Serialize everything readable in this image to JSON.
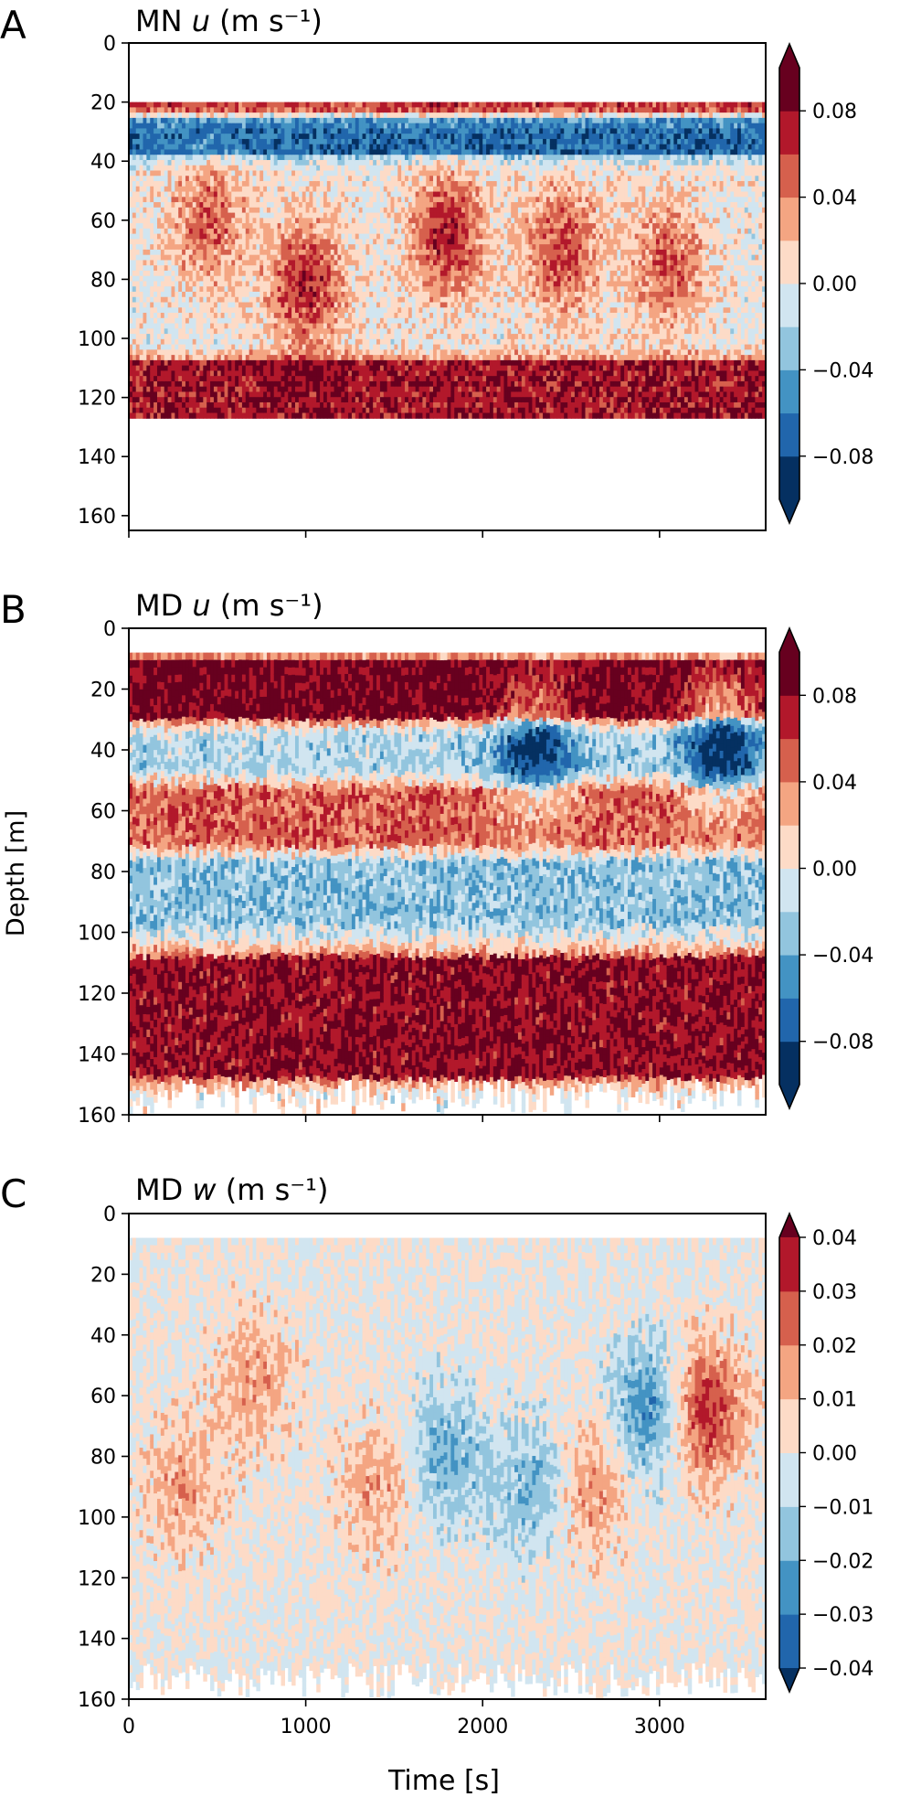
{
  "figure": {
    "xlabel": "Time [s]",
    "ylabel": "Depth [m]"
  },
  "colors": {
    "rdbu": [
      "#053061",
      "#2166ac",
      "#4393c3",
      "#92c5de",
      "#d1e5f0",
      "#f7f7f7",
      "#fddbc7",
      "#f4a582",
      "#d6604d",
      "#b2182b",
      "#67001f"
    ]
  },
  "chart_data": [
    {
      "type": "heatmap",
      "panel_letter": "A",
      "title_prefix": "MN",
      "title_var": "u",
      "title_unit": "(m s⁻¹)",
      "x_range": [
        0,
        3600
      ],
      "x_tick_values": [
        0,
        1000,
        2000,
        3000
      ],
      "x_tick_labels": [
        "",
        "",
        "",
        ""
      ],
      "y_range": [
        0,
        165
      ],
      "y_inverted": true,
      "y_ticks": [
        0,
        20,
        40,
        60,
        80,
        100,
        120,
        140,
        160
      ],
      "data_depth_range": [
        20,
        127
      ],
      "colorbar": {
        "vmin": -0.1,
        "vmax": 0.1,
        "levels": 10,
        "extend": "both",
        "ticks": [
          0.08,
          0.04,
          0.0,
          -0.04,
          -0.08
        ],
        "tick_labels": [
          "0.08",
          "0.04",
          "0.00",
          "−0.04",
          "−0.08"
        ]
      },
      "features": [
        {
          "kind": "band",
          "depth": [
            20,
            24
          ],
          "value": 0.07
        },
        {
          "kind": "band",
          "depth": [
            25,
            37
          ],
          "value": -0.07
        },
        {
          "kind": "band",
          "depth": [
            108,
            127
          ],
          "value": 0.075
        },
        {
          "kind": "blob",
          "t": 1000,
          "depth": 82,
          "value": 0.07
        },
        {
          "kind": "blob",
          "t": 1800,
          "depth": 65,
          "value": 0.07
        },
        {
          "kind": "blob",
          "t": 2450,
          "depth": 70,
          "value": 0.06
        },
        {
          "kind": "blob",
          "t": 3050,
          "depth": 75,
          "value": 0.05
        },
        {
          "kind": "blob",
          "t": 450,
          "depth": 60,
          "value": 0.05
        }
      ]
    },
    {
      "type": "heatmap",
      "panel_letter": "B",
      "title_prefix": "MD",
      "title_var": "u",
      "title_unit": "(m s⁻¹)",
      "x_range": [
        0,
        3600
      ],
      "x_tick_values": [
        0,
        1000,
        2000,
        3000
      ],
      "x_tick_labels": [
        "",
        "",
        "",
        ""
      ],
      "y_range": [
        0,
        160
      ],
      "y_inverted": true,
      "y_ticks": [
        0,
        20,
        40,
        60,
        80,
        100,
        120,
        140,
        160
      ],
      "data_depth_range": [
        8,
        158
      ],
      "colorbar": {
        "vmin": -0.1,
        "vmax": 0.1,
        "levels": 10,
        "extend": "both",
        "ticks": [
          0.08,
          0.04,
          0.0,
          -0.04,
          -0.08
        ],
        "tick_labels": [
          "0.08",
          "0.04",
          "0.00",
          "−0.04",
          "−0.08"
        ]
      },
      "features": [
        {
          "kind": "band",
          "depth": [
            10,
            30
          ],
          "value": 0.09
        },
        {
          "kind": "band",
          "depth": [
            32,
            48
          ],
          "value": -0.02
        },
        {
          "kind": "band",
          "depth": [
            52,
            72
          ],
          "value": 0.05
        },
        {
          "kind": "band",
          "depth": [
            76,
            98
          ],
          "value": -0.03
        },
        {
          "kind": "band",
          "depth": [
            108,
            148
          ],
          "value": 0.08
        },
        {
          "kind": "blob",
          "t": 2300,
          "depth": 40,
          "value": -0.07
        },
        {
          "kind": "blob",
          "t": 3350,
          "depth": 38,
          "value": -0.08
        }
      ]
    },
    {
      "type": "heatmap",
      "panel_letter": "C",
      "title_prefix": "MD",
      "title_var": "w",
      "title_unit": "(m s⁻¹)",
      "x_range": [
        0,
        3600
      ],
      "x_tick_values": [
        0,
        1000,
        2000,
        3000
      ],
      "x_tick_labels": [
        "0",
        "1000",
        "2000",
        "3000"
      ],
      "y_range": [
        0,
        160
      ],
      "y_inverted": true,
      "y_ticks": [
        0,
        20,
        40,
        60,
        80,
        100,
        120,
        140,
        160
      ],
      "data_depth_range": [
        8,
        158
      ],
      "colorbar": {
        "vmin": -0.04,
        "vmax": 0.04,
        "levels": 8,
        "extend": "both",
        "ticks": [
          0.04,
          0.03,
          0.02,
          0.01,
          0.0,
          -0.01,
          -0.02,
          -0.03,
          -0.04
        ],
        "tick_labels": [
          "0.04",
          "0.03",
          "0.02",
          "0.01",
          "0.00",
          "−0.01",
          "−0.02",
          "−0.03",
          "−0.04"
        ]
      },
      "features": [
        {
          "kind": "blob",
          "t": 3250,
          "depth": 65,
          "value": 0.035
        },
        {
          "kind": "blob",
          "t": 2950,
          "depth": 65,
          "value": -0.03
        },
        {
          "kind": "blob",
          "t": 1800,
          "depth": 80,
          "value": -0.02
        },
        {
          "kind": "blob",
          "t": 2300,
          "depth": 90,
          "value": -0.02
        },
        {
          "kind": "blob",
          "t": 2600,
          "depth": 90,
          "value": 0.02
        },
        {
          "kind": "blob",
          "t": 700,
          "depth": 55,
          "value": 0.015
        },
        {
          "kind": "blob",
          "t": 1400,
          "depth": 90,
          "value": 0.015
        },
        {
          "kind": "blob",
          "t": 300,
          "depth": 90,
          "value": 0.015
        }
      ]
    }
  ]
}
